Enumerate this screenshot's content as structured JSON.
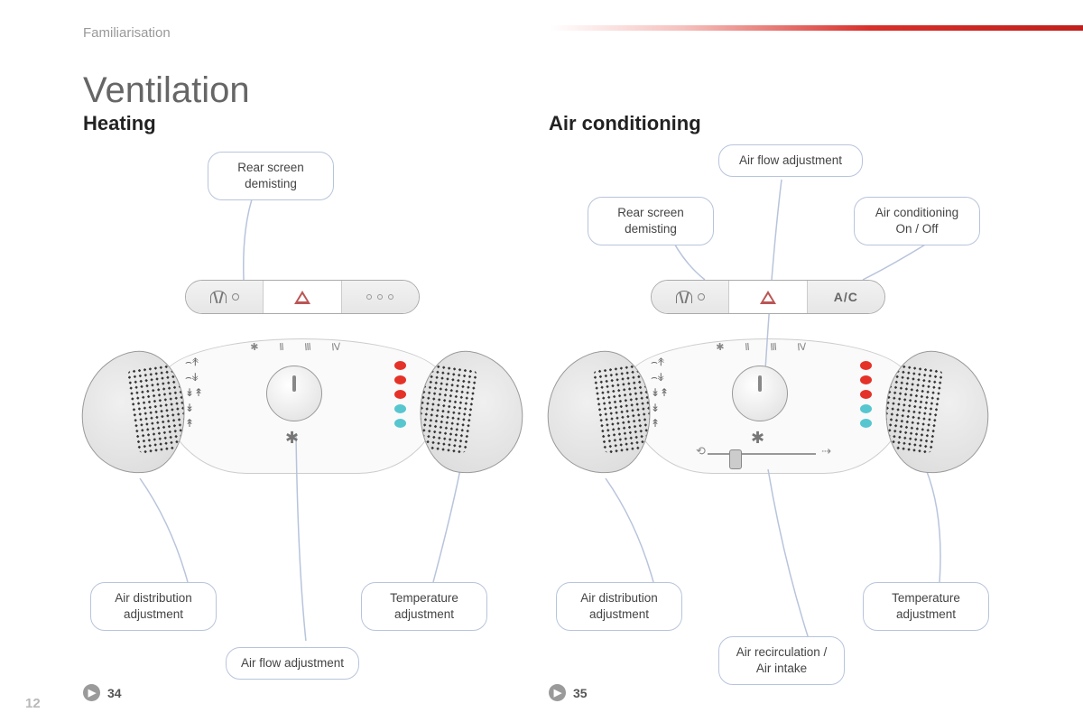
{
  "section_label": "Familiarisation",
  "title": "Ventilation",
  "page_number": "12",
  "colors": {
    "callout_border": "#b8c4dc",
    "hot": "#e53228",
    "cold": "#57c6cf",
    "gradient_red": "#c01f1b"
  },
  "left": {
    "subtitle": "Heating",
    "pageref": "34",
    "callouts": {
      "rear_demist": "Rear screen\ndemisting",
      "air_dist": "Air distribution\nadjustment",
      "temp": "Temperature\nadjustment",
      "air_flow": "Air flow adjustment"
    },
    "has_ac_button": false,
    "has_recirc": false
  },
  "right": {
    "subtitle": "Air conditioning",
    "pageref": "35",
    "callouts": {
      "air_flow_top": "Air flow adjustment",
      "rear_demist": "Rear screen\ndemisting",
      "ac_onoff": "Air conditioning\nOn / Off",
      "air_dist": "Air distribution\nadjustment",
      "temp": "Temperature\nadjustment",
      "recirc": "Air recirculation /\nAir intake"
    },
    "ac_label": "A/C",
    "has_ac_button": true,
    "has_recirc": true
  },
  "temp_dot_colors": [
    "#e53228",
    "#e53228",
    "#e53228",
    "#57c6cf",
    "#57c6cf"
  ]
}
